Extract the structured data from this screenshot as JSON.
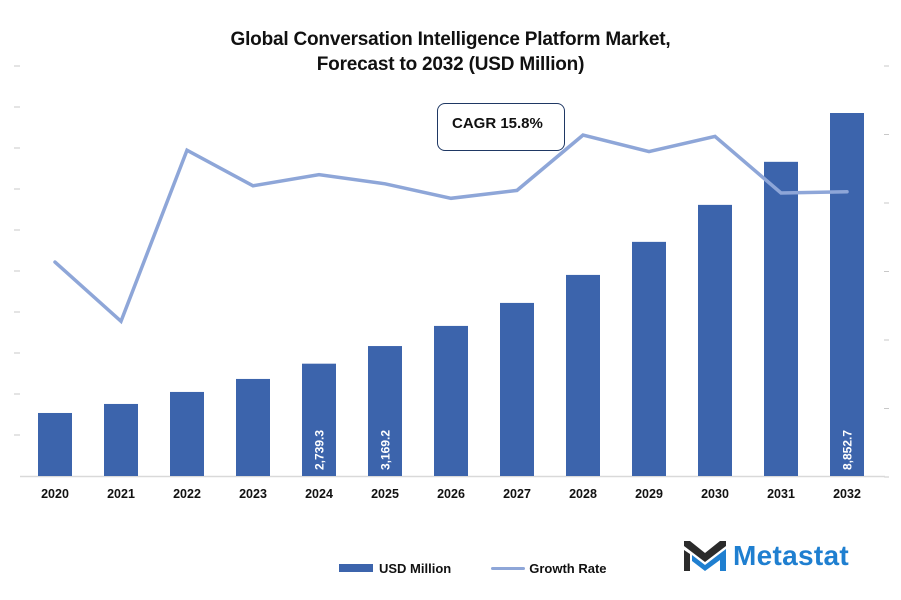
{
  "chart_data": {
    "type": "bar+line",
    "title_lines": [
      "Global Conversation Intelligence Platform Market,",
      "Forecast to 2032 (USD Million)"
    ],
    "categories": [
      "2020",
      "2021",
      "2022",
      "2023",
      "2024",
      "2025",
      "2026",
      "2027",
      "2028",
      "2029",
      "2030",
      "2031",
      "2032"
    ],
    "series": [
      {
        "name": "USD Million",
        "type": "bar",
        "color": "#3c64ac",
        "axis": "left",
        "values": [
          1537,
          1757,
          2050,
          2367,
          2739.3,
          3169.2,
          3660,
          4221,
          4904,
          5710,
          6612,
          7662,
          8852.7
        ],
        "data_labels": {
          "4": "2,739.3",
          "5": "3,169.2",
          "12": "8,852.7"
        }
      },
      {
        "name": "Growth Rate",
        "type": "line",
        "color": "#8ea6d8",
        "axis": "right",
        "unit": "%",
        "values": [
          14.9,
          14.0,
          16.6,
          16.06,
          16.23,
          16.09,
          15.87,
          15.99,
          16.83,
          16.58,
          16.81,
          15.95,
          15.97
        ]
      }
    ],
    "y_left_range": [
      0,
      9000
    ],
    "y_right_range_estimated": [
      11.65,
      17.88
    ],
    "axis_tick_labels_visible": false,
    "grid": false,
    "legend_position": "bottom",
    "annotation": "CAGR 15.8%"
  },
  "legend": {
    "items": [
      {
        "label": "USD Million"
      },
      {
        "label": "Growth Rate"
      }
    ]
  },
  "annotation": {
    "cagr": "CAGR 15.8%"
  },
  "branding": {
    "logo_text": "Metastat",
    "logo_color": "#1f7fd0",
    "logo_dark": "#2b2b2b"
  }
}
